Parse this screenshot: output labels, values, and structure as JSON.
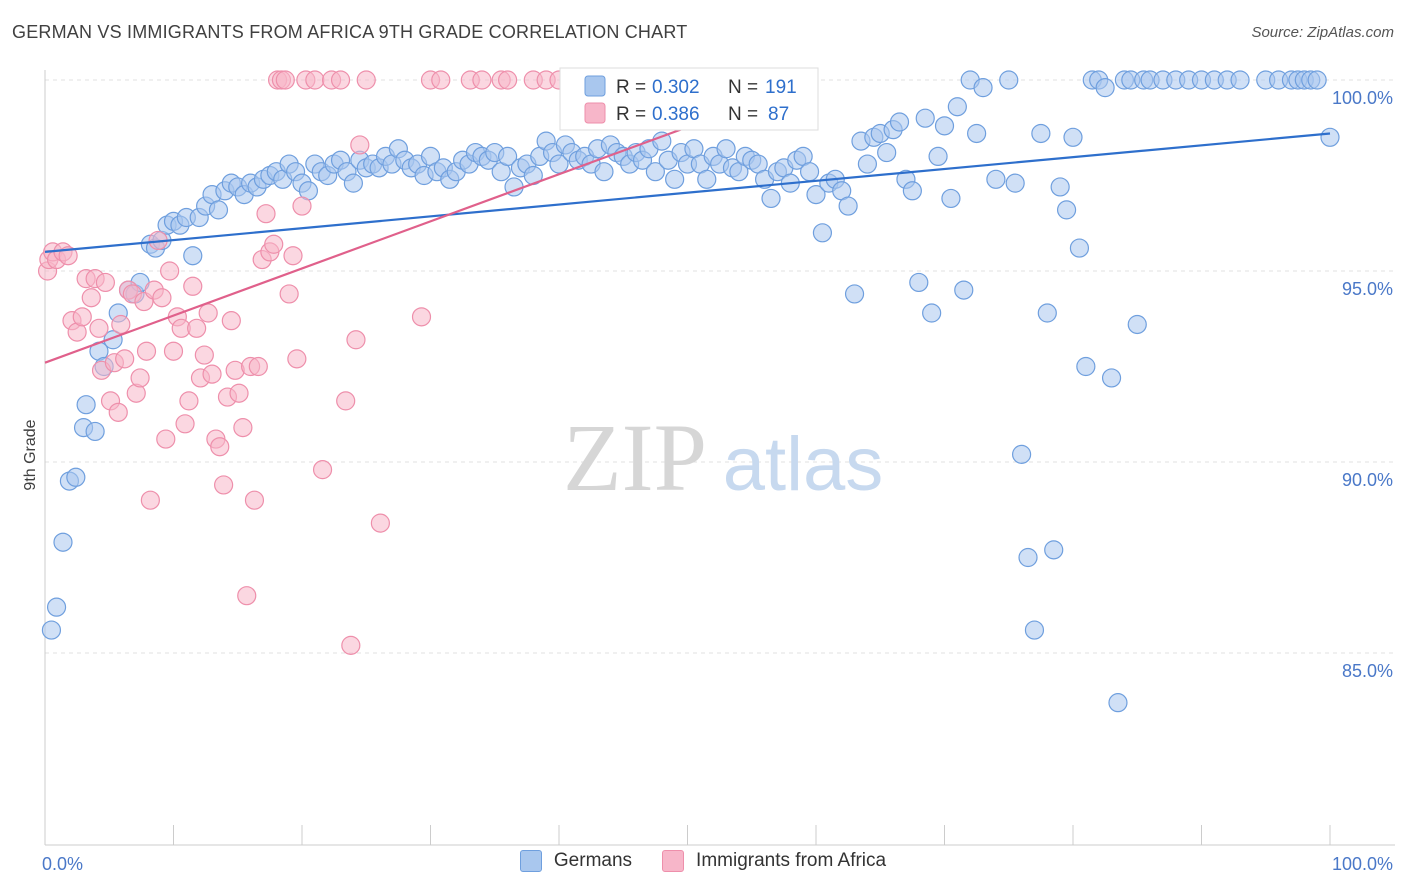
{
  "title": "GERMAN VS IMMIGRANTS FROM AFRICA 9TH GRADE CORRELATION CHART",
  "source": "Source: ZipAtlas.com",
  "watermark": {
    "zip": "ZIP",
    "atlas": "atlas"
  },
  "chart_data": {
    "type": "scatter",
    "title": "GERMAN VS IMMIGRANTS FROM AFRICA 9TH GRADE CORRELATION CHART",
    "xlabel": "",
    "ylabel": "9th Grade",
    "xlim": [
      0,
      100
    ],
    "ylim": [
      80,
      100.5
    ],
    "x_tick_labels": [
      "0.0%",
      "100.0%"
    ],
    "y_ticks": [
      {
        "value": 85,
        "label": "85.0%"
      },
      {
        "value": 90,
        "label": "90.0%"
      },
      {
        "value": 95,
        "label": "95.0%"
      },
      {
        "value": 100,
        "label": "100.0%"
      }
    ],
    "legend_stats": [
      {
        "r_label": "R =",
        "r": "0.302",
        "n_label": "N =",
        "n": "191"
      },
      {
        "r_label": "R =",
        "r": "0.386",
        "n_label": "N =",
        "n": "87"
      }
    ],
    "series": [
      {
        "name": "Germans",
        "color": "#a9c7ee",
        "stroke": "#6f9fde",
        "line_color": "#2e6fcc",
        "trend": {
          "x": [
            0,
            100
          ],
          "y": [
            95.5,
            98.6
          ]
        },
        "points": [
          [
            0.5,
            85.6
          ],
          [
            0.9,
            86.2
          ],
          [
            1.4,
            87.9
          ],
          [
            1.9,
            89.5
          ],
          [
            2.4,
            89.6
          ],
          [
            3.0,
            90.9
          ],
          [
            3.2,
            91.5
          ],
          [
            3.9,
            90.8
          ],
          [
            4.2,
            92.9
          ],
          [
            4.6,
            92.5
          ],
          [
            5.3,
            93.2
          ],
          [
            5.7,
            93.9
          ],
          [
            6.5,
            94.5
          ],
          [
            7.0,
            94.4
          ],
          [
            7.4,
            94.7
          ],
          [
            8.2,
            95.7
          ],
          [
            8.6,
            95.6
          ],
          [
            9.1,
            95.8
          ],
          [
            9.5,
            96.2
          ],
          [
            10.0,
            96.3
          ],
          [
            10.5,
            96.2
          ],
          [
            11.0,
            96.4
          ],
          [
            11.5,
            95.4
          ],
          [
            12.0,
            96.4
          ],
          [
            12.5,
            96.7
          ],
          [
            13.0,
            97.0
          ],
          [
            13.5,
            96.6
          ],
          [
            14.0,
            97.1
          ],
          [
            14.5,
            97.3
          ],
          [
            15.0,
            97.2
          ],
          [
            15.5,
            97.0
          ],
          [
            16.0,
            97.3
          ],
          [
            16.5,
            97.2
          ],
          [
            17.0,
            97.4
          ],
          [
            17.5,
            97.5
          ],
          [
            18.0,
            97.6
          ],
          [
            18.5,
            97.4
          ],
          [
            19.0,
            97.8
          ],
          [
            19.5,
            97.6
          ],
          [
            20.0,
            97.3
          ],
          [
            20.5,
            97.1
          ],
          [
            21.0,
            97.8
          ],
          [
            21.5,
            97.6
          ],
          [
            22.0,
            97.5
          ],
          [
            22.5,
            97.8
          ],
          [
            23.0,
            97.9
          ],
          [
            23.5,
            97.6
          ],
          [
            24.0,
            97.3
          ],
          [
            24.5,
            97.9
          ],
          [
            25.0,
            97.7
          ],
          [
            25.5,
            97.8
          ],
          [
            26.0,
            97.7
          ],
          [
            26.5,
            98.0
          ],
          [
            27.0,
            97.8
          ],
          [
            27.5,
            98.2
          ],
          [
            28.0,
            97.9
          ],
          [
            28.5,
            97.7
          ],
          [
            29.0,
            97.8
          ],
          [
            29.5,
            97.5
          ],
          [
            30.0,
            98.0
          ],
          [
            30.5,
            97.6
          ],
          [
            31.0,
            97.7
          ],
          [
            31.5,
            97.4
          ],
          [
            32.0,
            97.6
          ],
          [
            32.5,
            97.9
          ],
          [
            33.0,
            97.8
          ],
          [
            33.5,
            98.1
          ],
          [
            34.0,
            98.0
          ],
          [
            34.5,
            97.9
          ],
          [
            35.0,
            98.1
          ],
          [
            35.5,
            97.6
          ],
          [
            36.0,
            98.0
          ],
          [
            36.5,
            97.2
          ],
          [
            37.0,
            97.7
          ],
          [
            37.5,
            97.8
          ],
          [
            38.0,
            97.5
          ],
          [
            38.5,
            98.0
          ],
          [
            39.0,
            98.4
          ],
          [
            39.5,
            98.1
          ],
          [
            40.0,
            97.8
          ],
          [
            40.5,
            98.3
          ],
          [
            41.0,
            98.1
          ],
          [
            41.5,
            97.9
          ],
          [
            42.0,
            98.0
          ],
          [
            42.5,
            97.8
          ],
          [
            43.0,
            98.2
          ],
          [
            43.5,
            97.6
          ],
          [
            44.0,
            98.3
          ],
          [
            44.5,
            98.1
          ],
          [
            45.0,
            98.0
          ],
          [
            45.5,
            97.8
          ],
          [
            46.0,
            98.1
          ],
          [
            46.5,
            97.9
          ],
          [
            47.0,
            98.2
          ],
          [
            47.5,
            97.6
          ],
          [
            48.0,
            98.4
          ],
          [
            48.5,
            97.9
          ],
          [
            49.0,
            97.4
          ],
          [
            49.5,
            98.1
          ],
          [
            50.0,
            97.8
          ],
          [
            50.5,
            98.2
          ],
          [
            51.0,
            97.8
          ],
          [
            51.5,
            97.4
          ],
          [
            52.0,
            98.0
          ],
          [
            52.5,
            97.8
          ],
          [
            53.0,
            98.2
          ],
          [
            53.5,
            97.7
          ],
          [
            54.0,
            97.6
          ],
          [
            54.5,
            98.0
          ],
          [
            55.0,
            97.9
          ],
          [
            55.5,
            97.8
          ],
          [
            56.0,
            97.4
          ],
          [
            56.5,
            96.9
          ],
          [
            57.0,
            97.6
          ],
          [
            57.5,
            97.7
          ],
          [
            58.0,
            97.3
          ],
          [
            58.5,
            97.9
          ],
          [
            59.0,
            98.0
          ],
          [
            59.5,
            97.6
          ],
          [
            60.0,
            97.0
          ],
          [
            60.5,
            96.0
          ],
          [
            61.0,
            97.3
          ],
          [
            61.5,
            97.4
          ],
          [
            62.0,
            97.1
          ],
          [
            62.5,
            96.7
          ],
          [
            63.0,
            94.4
          ],
          [
            63.5,
            98.4
          ],
          [
            64.0,
            97.8
          ],
          [
            64.5,
            98.5
          ],
          [
            65.0,
            98.6
          ],
          [
            65.5,
            98.1
          ],
          [
            66.0,
            98.7
          ],
          [
            66.5,
            98.9
          ],
          [
            67.0,
            97.4
          ],
          [
            67.5,
            97.1
          ],
          [
            68.0,
            94.7
          ],
          [
            68.5,
            99.0
          ],
          [
            69.0,
            93.9
          ],
          [
            69.5,
            98.0
          ],
          [
            70.0,
            98.8
          ],
          [
            70.5,
            96.9
          ],
          [
            71.0,
            99.3
          ],
          [
            71.5,
            94.5
          ],
          [
            72.0,
            100.0
          ],
          [
            72.5,
            98.6
          ],
          [
            73.0,
            99.8
          ],
          [
            74.0,
            97.4
          ],
          [
            75.0,
            100.0
          ],
          [
            75.5,
            97.3
          ],
          [
            76.0,
            90.2
          ],
          [
            76.5,
            87.5
          ],
          [
            77.0,
            85.6
          ],
          [
            77.5,
            98.6
          ],
          [
            78.0,
            93.9
          ],
          [
            78.5,
            87.7
          ],
          [
            79.0,
            97.2
          ],
          [
            79.5,
            96.6
          ],
          [
            80.0,
            98.5
          ],
          [
            80.5,
            95.6
          ],
          [
            81.0,
            92.5
          ],
          [
            81.5,
            100.0
          ],
          [
            82.0,
            100.0
          ],
          [
            82.5,
            99.8
          ],
          [
            83.0,
            92.2
          ],
          [
            83.5,
            83.7
          ],
          [
            84.0,
            100.0
          ],
          [
            84.5,
            100.0
          ],
          [
            85.0,
            93.6
          ],
          [
            85.5,
            100.0
          ],
          [
            86.0,
            100.0
          ],
          [
            87.0,
            100.0
          ],
          [
            88.0,
            100.0
          ],
          [
            89.0,
            100.0
          ],
          [
            90.0,
            100.0
          ],
          [
            91.0,
            100.0
          ],
          [
            92.0,
            100.0
          ],
          [
            93.0,
            100.0
          ],
          [
            95.0,
            100.0
          ],
          [
            96.0,
            100.0
          ],
          [
            97.0,
            100.0
          ],
          [
            97.5,
            100.0
          ],
          [
            98.0,
            100.0
          ],
          [
            98.5,
            100.0
          ],
          [
            99.0,
            100.0
          ],
          [
            100.0,
            98.5
          ]
        ]
      },
      {
        "name": "Immigrants from Africa",
        "color": "#f7b6c9",
        "stroke": "#ee8fab",
        "line_color": "#e0608b",
        "trend": {
          "x": [
            0,
            60
          ],
          "y": [
            92.6,
            100.0
          ]
        },
        "points": [
          [
            0.2,
            95.0
          ],
          [
            0.3,
            95.3
          ],
          [
            0.6,
            95.5
          ],
          [
            0.9,
            95.3
          ],
          [
            1.4,
            95.5
          ],
          [
            1.8,
            95.4
          ],
          [
            2.1,
            93.7
          ],
          [
            2.5,
            93.4
          ],
          [
            2.9,
            93.8
          ],
          [
            3.2,
            94.8
          ],
          [
            3.6,
            94.3
          ],
          [
            3.9,
            94.8
          ],
          [
            4.2,
            93.5
          ],
          [
            4.4,
            92.4
          ],
          [
            4.7,
            94.7
          ],
          [
            5.1,
            91.6
          ],
          [
            5.4,
            92.6
          ],
          [
            5.7,
            91.3
          ],
          [
            5.9,
            93.6
          ],
          [
            6.2,
            92.7
          ],
          [
            6.5,
            94.5
          ],
          [
            6.8,
            94.4
          ],
          [
            7.1,
            91.8
          ],
          [
            7.4,
            92.2
          ],
          [
            7.7,
            94.2
          ],
          [
            7.9,
            92.9
          ],
          [
            8.2,
            89.0
          ],
          [
            8.5,
            94.5
          ],
          [
            8.8,
            95.8
          ],
          [
            9.1,
            94.3
          ],
          [
            9.4,
            90.6
          ],
          [
            9.7,
            95.0
          ],
          [
            10.0,
            92.9
          ],
          [
            10.3,
            93.8
          ],
          [
            10.6,
            93.5
          ],
          [
            10.9,
            91.0
          ],
          [
            11.2,
            91.6
          ],
          [
            11.5,
            94.6
          ],
          [
            11.8,
            93.5
          ],
          [
            12.1,
            92.2
          ],
          [
            12.4,
            92.8
          ],
          [
            12.7,
            93.9
          ],
          [
            13.0,
            92.3
          ],
          [
            13.3,
            90.6
          ],
          [
            13.6,
            90.4
          ],
          [
            13.9,
            89.4
          ],
          [
            14.2,
            91.7
          ],
          [
            14.5,
            93.7
          ],
          [
            14.8,
            92.4
          ],
          [
            15.1,
            91.8
          ],
          [
            15.4,
            90.9
          ],
          [
            15.7,
            86.5
          ],
          [
            16.0,
            92.5
          ],
          [
            16.3,
            89.0
          ],
          [
            16.6,
            92.5
          ],
          [
            16.9,
            95.3
          ],
          [
            17.2,
            96.5
          ],
          [
            17.5,
            95.5
          ],
          [
            17.8,
            95.7
          ],
          [
            18.1,
            100.0
          ],
          [
            18.4,
            100.0
          ],
          [
            18.7,
            100.0
          ],
          [
            19.0,
            94.4
          ],
          [
            19.3,
            95.4
          ],
          [
            19.6,
            92.7
          ],
          [
            20.0,
            96.7
          ],
          [
            20.3,
            100.0
          ],
          [
            21.0,
            100.0
          ],
          [
            21.6,
            89.8
          ],
          [
            22.3,
            100.0
          ],
          [
            23.0,
            100.0
          ],
          [
            23.4,
            91.6
          ],
          [
            23.8,
            85.2
          ],
          [
            24.2,
            93.2
          ],
          [
            24.5,
            98.3
          ],
          [
            25.0,
            100.0
          ],
          [
            26.1,
            88.4
          ],
          [
            29.3,
            93.8
          ],
          [
            30.0,
            100.0
          ],
          [
            30.8,
            100.0
          ],
          [
            33.1,
            100.0
          ],
          [
            34.0,
            100.0
          ],
          [
            35.5,
            100.0
          ],
          [
            36.0,
            100.0
          ],
          [
            38.0,
            100.0
          ],
          [
            39.0,
            100.0
          ],
          [
            40.0,
            100.0
          ]
        ]
      }
    ]
  }
}
